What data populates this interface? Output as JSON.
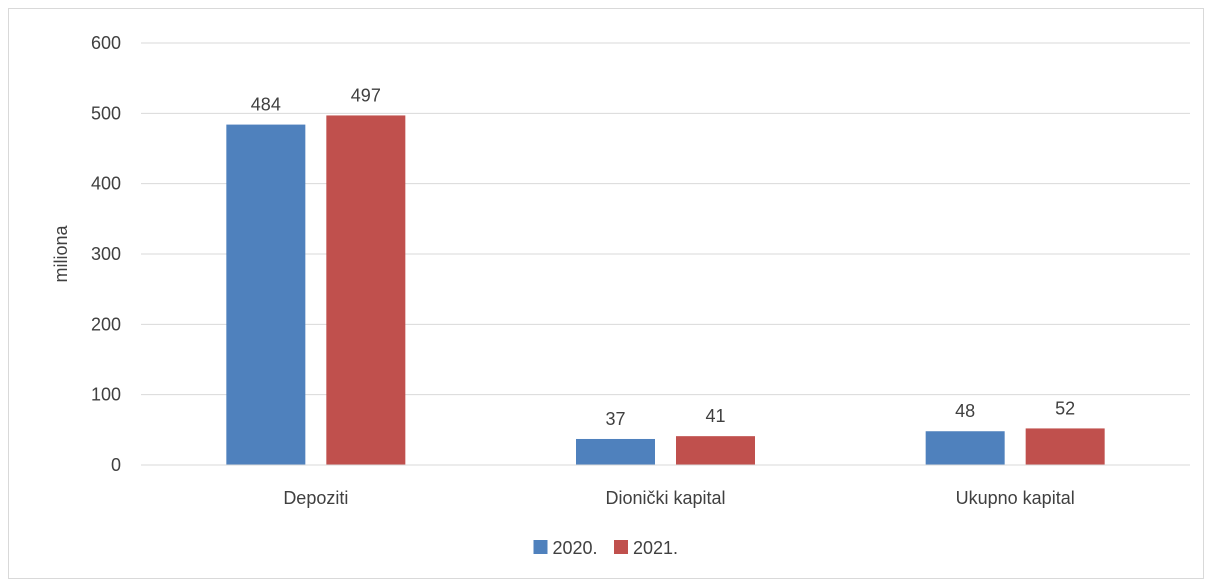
{
  "chart_data": {
    "type": "bar",
    "title": "",
    "xlabel": "",
    "ylabel": "miliona",
    "ylim": [
      0,
      600
    ],
    "yticks": [
      0,
      100,
      200,
      300,
      400,
      500,
      600
    ],
    "grid": true,
    "legend_position": "bottom",
    "categories": [
      "Depoziti",
      "Dionički kapital",
      "Ukupno kapital"
    ],
    "series": [
      {
        "name": "2020.",
        "color": "#4f81bd",
        "values": [
          484,
          37,
          48
        ]
      },
      {
        "name": "2021.",
        "color": "#c0504d",
        "values": [
          497,
          41,
          52
        ]
      }
    ]
  }
}
